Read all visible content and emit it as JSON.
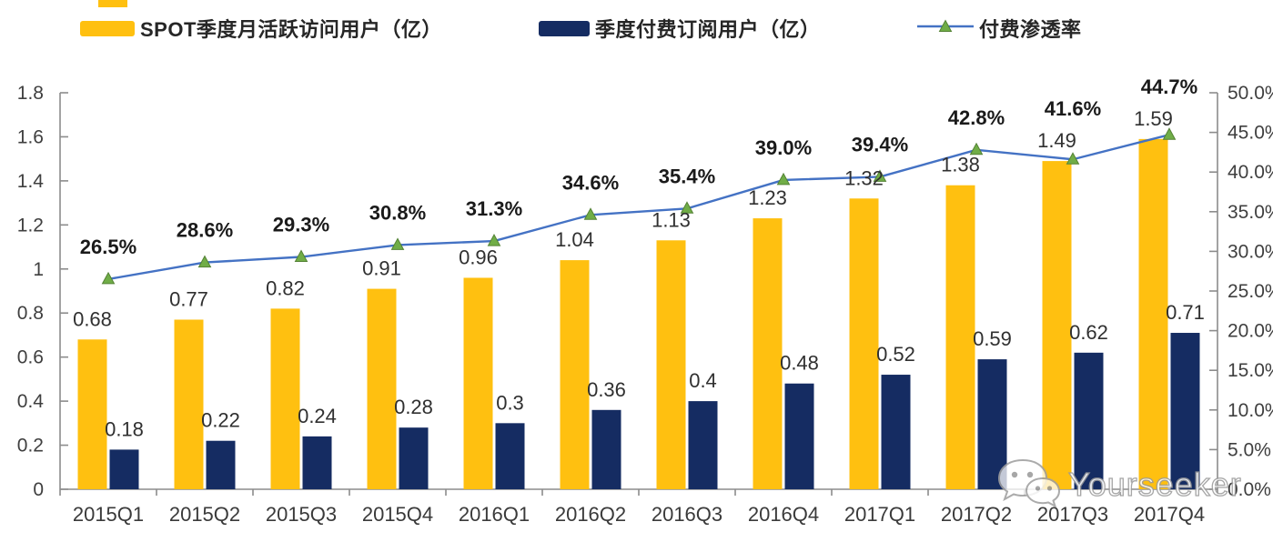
{
  "chart_data": {
    "type": "bar",
    "subtype": "combo-bar-line",
    "categories": [
      "2015Q1",
      "2015Q2",
      "2015Q3",
      "2015Q4",
      "2016Q1",
      "2016Q2",
      "2016Q3",
      "2016Q4",
      "2017Q1",
      "2017Q2",
      "2017Q3",
      "2017Q4"
    ],
    "series": [
      {
        "name": "SPOT季度月活跃访问用户（亿）",
        "type": "bar",
        "color": "#FFC010",
        "axis": "left",
        "values": [
          0.68,
          0.77,
          0.82,
          0.91,
          0.96,
          1.04,
          1.13,
          1.23,
          1.32,
          1.38,
          1.49,
          1.59
        ],
        "labels": [
          "0.68",
          "0.77",
          "0.82",
          "0.91",
          "0.96",
          "1.04",
          "1.13",
          "1.23",
          "1.32",
          "1.38",
          "1.49",
          "1.59"
        ]
      },
      {
        "name": "季度付费订阅用户（亿）",
        "type": "bar",
        "color": "#152C62",
        "axis": "left",
        "values": [
          0.18,
          0.22,
          0.24,
          0.28,
          0.3,
          0.36,
          0.4,
          0.48,
          0.52,
          0.59,
          0.62,
          0.71
        ],
        "labels": [
          "0.18",
          "0.22",
          "0.24",
          "0.28",
          "0.3",
          "0.36",
          "0.4",
          "0.48",
          "0.52",
          "0.59",
          "0.62",
          "0.71"
        ]
      },
      {
        "name": "付费渗透率",
        "type": "line",
        "color": "#4472C4",
        "marker_color": "#70AD47",
        "marker_stroke": "#548235",
        "axis": "right",
        "values": [
          26.5,
          28.6,
          29.3,
          30.8,
          31.3,
          34.6,
          35.4,
          39.0,
          39.4,
          42.8,
          41.6,
          44.7
        ],
        "labels": [
          "26.5%",
          "28.6%",
          "29.3%",
          "30.8%",
          "31.3%",
          "34.6%",
          "35.4%",
          "39.0%",
          "39.4%",
          "42.8%",
          "41.6%",
          "44.7%"
        ]
      }
    ],
    "left_axis": {
      "min": 0,
      "max": 1.8,
      "tick_values": [
        0,
        0.2,
        0.4,
        0.6,
        0.8,
        1,
        1.2,
        1.4,
        1.6,
        1.8
      ],
      "tick_labels": [
        "0",
        "0.2",
        "0.4",
        "0.6",
        "0.8",
        "1",
        "1.2",
        "1.4",
        "1.6",
        "1.8"
      ]
    },
    "right_axis": {
      "min": 0,
      "max": 50,
      "tick_values": [
        0,
        5,
        10,
        15,
        20,
        25,
        30,
        35,
        40,
        45,
        50
      ],
      "tick_labels": [
        "0.0%",
        "5.0%",
        "10.0%",
        "15.0%",
        "20.0%",
        "25.0%",
        "30.0%",
        "35.0%",
        "40.0%",
        "45.0%",
        "50.0%"
      ]
    },
    "legend_position": "top",
    "grid": false,
    "axis_color": "#8c8c8c",
    "label_color": "#303030",
    "pct_label_color": "#1a1a1a"
  },
  "watermark": {
    "text": "Yourseeker"
  }
}
